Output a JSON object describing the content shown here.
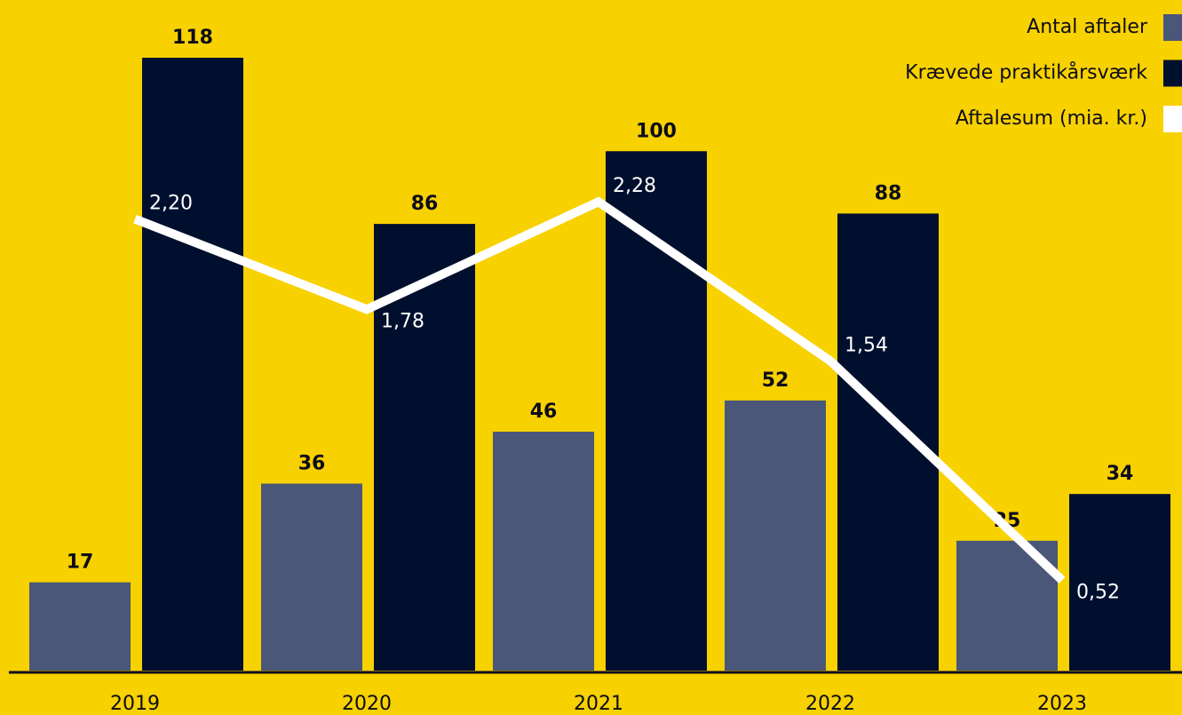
{
  "chart_data": {
    "type": "bar",
    "categories": [
      "2019",
      "2020",
      "2021",
      "2022",
      "2023"
    ],
    "series": [
      {
        "name": "Antal aftaler",
        "color": "#4a5778",
        "values": [
          17,
          36,
          46,
          52,
          25
        ]
      },
      {
        "name": "Krævede praktikårsværk",
        "color": "#000f2e",
        "values": [
          118,
          86,
          100,
          88,
          34
        ]
      },
      {
        "name": "Aftalesum (mia. kr.)",
        "color": "#ffffff",
        "type": "line",
        "axis": "y2",
        "values": [
          2.2,
          1.78,
          2.28,
          1.54,
          0.52
        ],
        "value_labels": [
          "2,20",
          "1,78",
          "2,28",
          "1,54",
          "0,52"
        ]
      }
    ],
    "ylim": [
      0,
      118
    ],
    "y2lim": [
      0.1,
      2.95
    ],
    "legend": "top-right"
  }
}
